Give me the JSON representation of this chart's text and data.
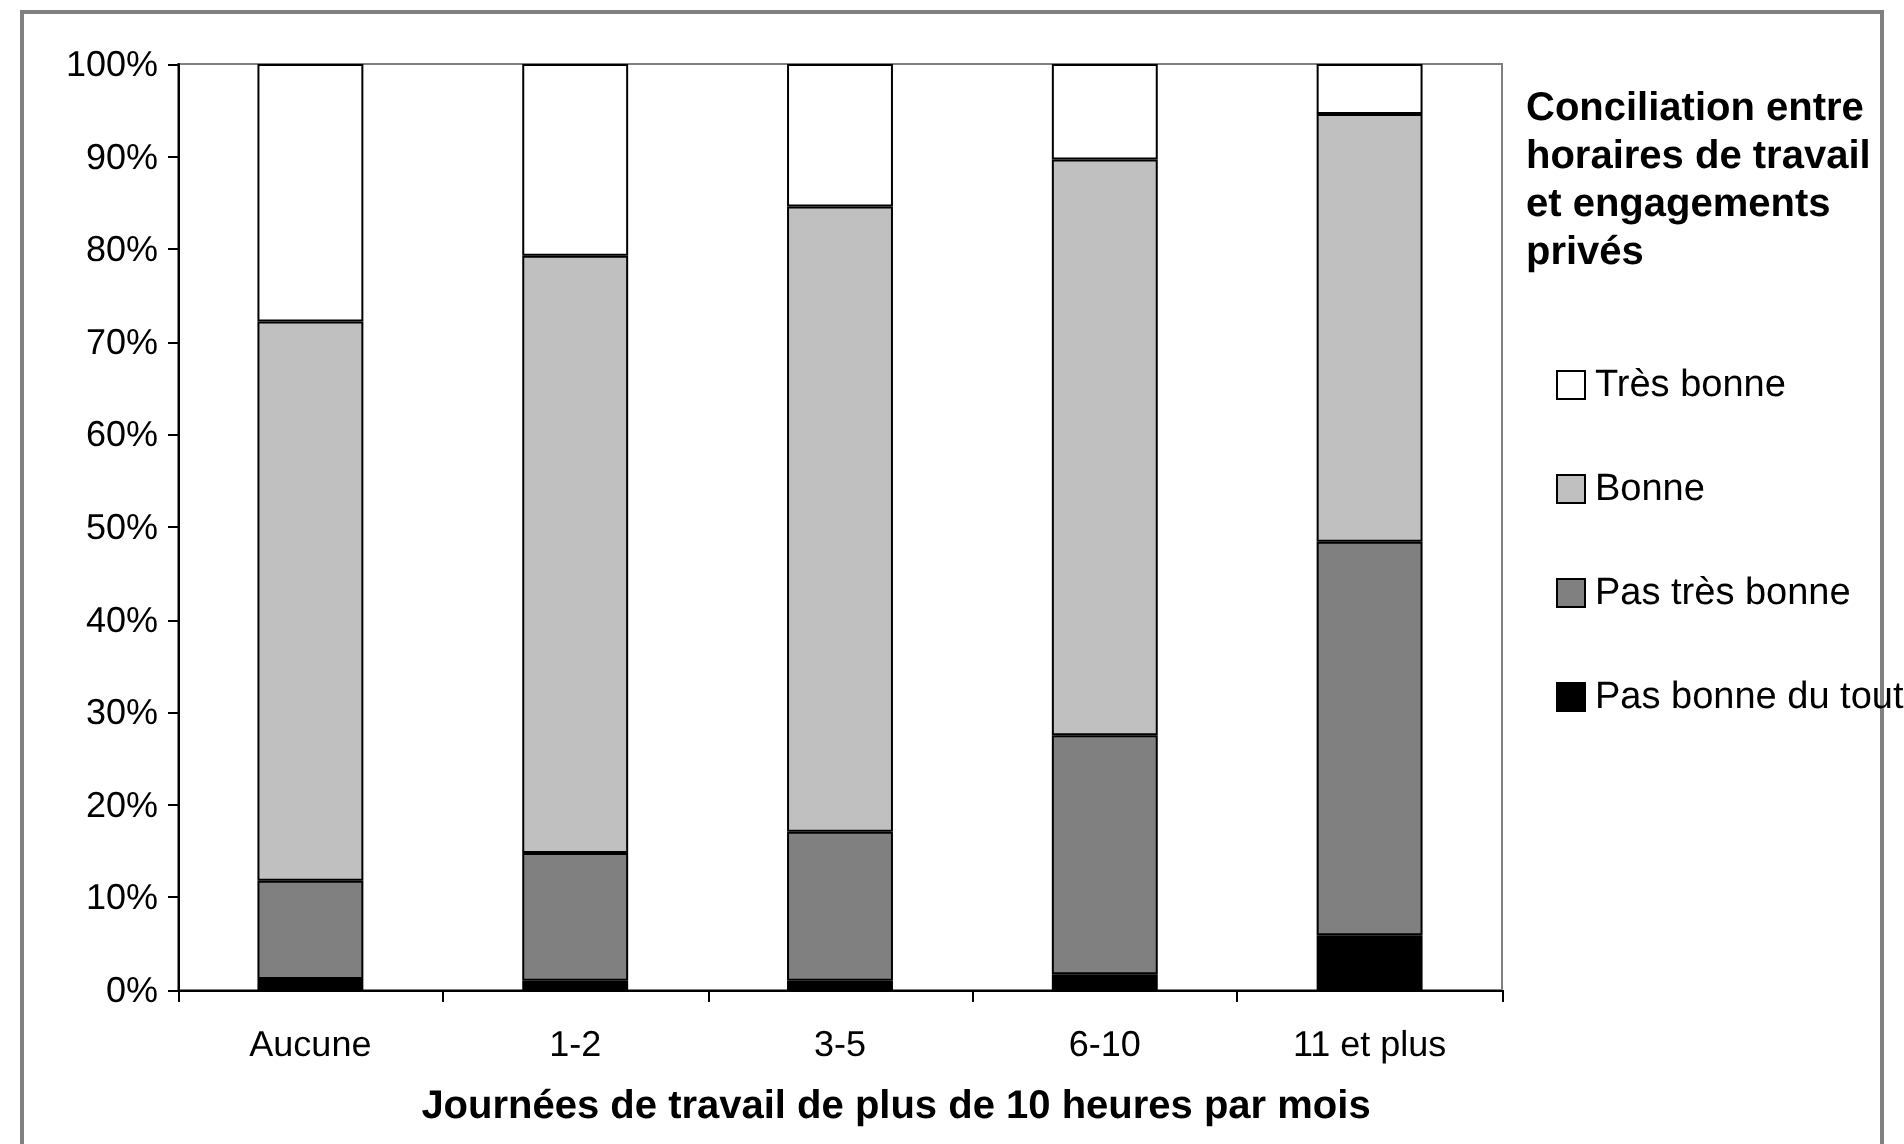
{
  "chart_data": {
    "type": "bar",
    "stacked": true,
    "categories": [
      "Aucune",
      "1-2",
      "3-5",
      "6-10",
      "11 et plus"
    ],
    "series": [
      {
        "name": "Pas bonne du tout",
        "color": "#000000",
        "values": [
          1.2,
          1.0,
          1.0,
          1.7,
          5.9
        ]
      },
      {
        "name": "Pas très bonne",
        "color": "#808080",
        "values": [
          10.6,
          13.8,
          16.1,
          25.8,
          42.5
        ]
      },
      {
        "name": "Bonne",
        "color": "#c0c0c0",
        "values": [
          60.4,
          64.5,
          67.5,
          62.2,
          46.2
        ]
      },
      {
        "name": "Très bonne",
        "color": "#ffffff",
        "values": [
          27.8,
          20.7,
          15.4,
          10.3,
          5.4
        ]
      }
    ],
    "xlabel": "Journées de travail de plus de 10 heures par mois",
    "legend_title": "Conciliation entre horaires de travail et engagements privés",
    "legend": "right",
    "ylim": [
      0,
      100
    ],
    "yticks": [
      {
        "value": 0,
        "label": "0%"
      },
      {
        "value": 10,
        "label": "10%"
      },
      {
        "value": 20,
        "label": "20%"
      },
      {
        "value": 30,
        "label": "30%"
      },
      {
        "value": 40,
        "label": "40%"
      },
      {
        "value": 50,
        "label": "50%"
      },
      {
        "value": 60,
        "label": "60%"
      },
      {
        "value": 70,
        "label": "70%"
      },
      {
        "value": 80,
        "label": "80%"
      },
      {
        "value": 90,
        "label": "90%"
      },
      {
        "value": 100,
        "label": "100%"
      }
    ]
  }
}
